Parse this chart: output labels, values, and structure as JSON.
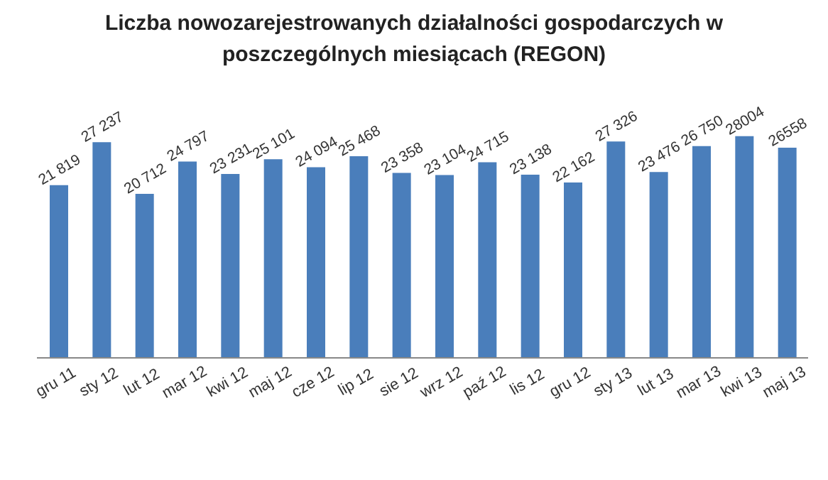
{
  "chart_data": {
    "type": "bar",
    "title": "Liczba nowozarejestrowanych działalności gospodarczych w poszczególnych miesiącach (REGON)",
    "categories": [
      "gru 11",
      "sty 12",
      "lut 12",
      "mar 12",
      "kwi 12",
      "maj 12",
      "cze 12",
      "lip 12",
      "sie 12",
      "wrz 12",
      "paź 12",
      "lis 12",
      "gru 12",
      "sty 13",
      "lut 13",
      "mar 13",
      "kwi 13",
      "maj 13"
    ],
    "values": [
      21819,
      27237,
      20712,
      24797,
      23231,
      25101,
      24094,
      25468,
      23358,
      23104,
      24715,
      23138,
      22162,
      27326,
      23476,
      26750,
      28004,
      26558
    ],
    "value_labels": [
      "21 819",
      "27 237",
      "20 712",
      "24 797",
      "23 231",
      "25 101",
      "24 094",
      "25 468",
      "23 358",
      "23 104",
      "24 715",
      "23 138",
      "22 162",
      "27 326",
      "23 476",
      "26 750",
      "28004",
      "26558"
    ],
    "color": "#4a7ebb"
  }
}
